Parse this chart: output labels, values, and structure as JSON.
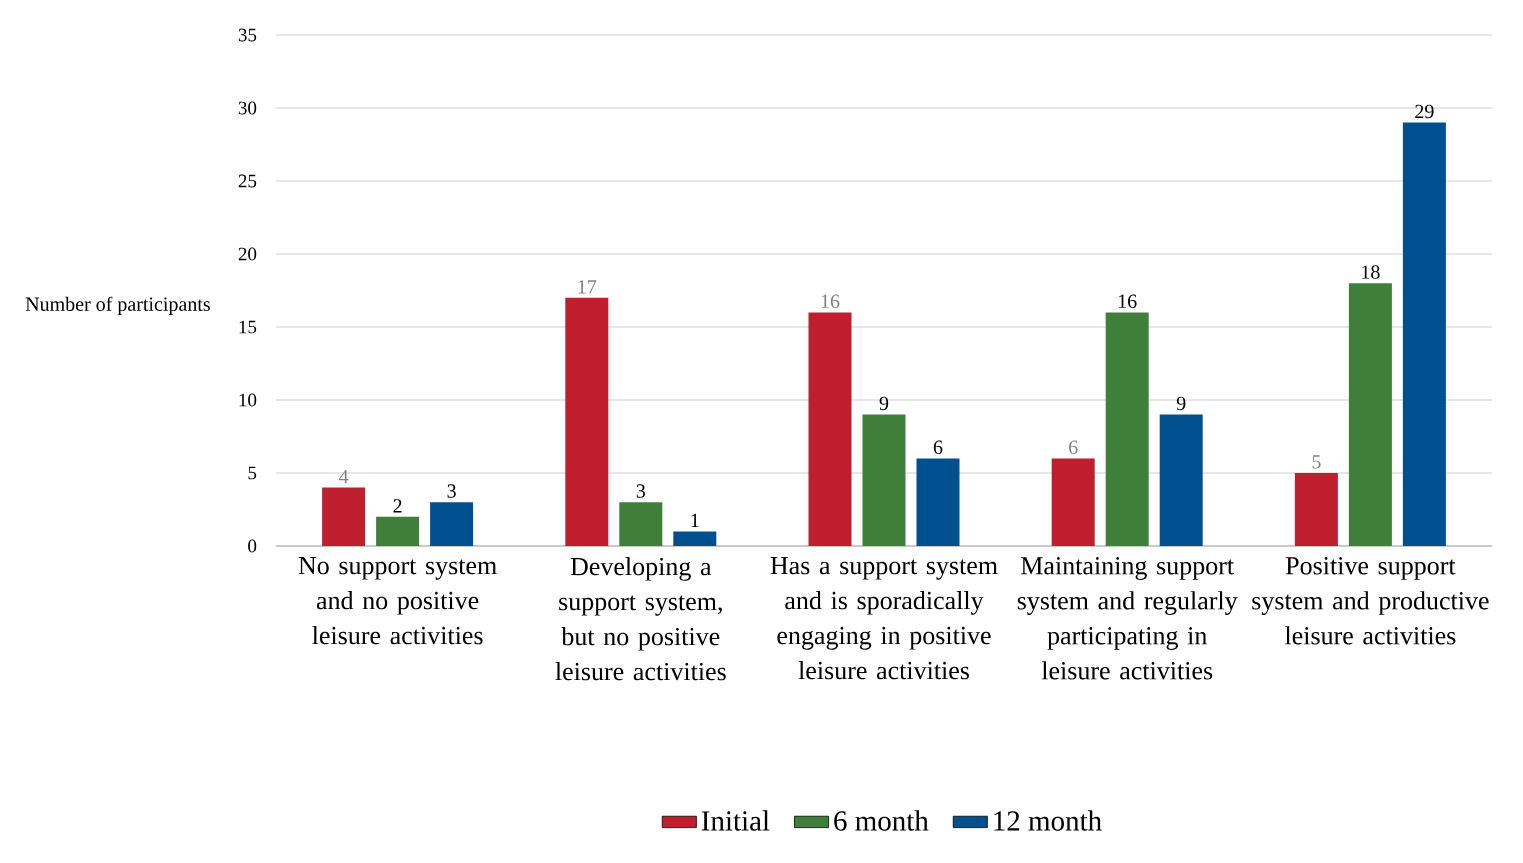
{
  "chart_data": {
    "type": "bar",
    "ylabel": "Number of participants",
    "categories": [
      "No support system and no positive leisure activities",
      "Developing a support system, but no positive leisure activities",
      "Has a support system and is sporadically engaging in positive leisure activities",
      "Maintaining support system and regularly participating in leisure activities",
      "Positive support system and productive leisure activities"
    ],
    "series": [
      {
        "name": "Initial",
        "color": "#be1e2d",
        "values": [
          4,
          17,
          16,
          6,
          5
        ]
      },
      {
        "name": "6 month",
        "color": "#3f7f3a",
        "values": [
          2,
          3,
          9,
          16,
          18
        ]
      },
      {
        "name": "12 month",
        "color": "#00508f",
        "values": [
          3,
          1,
          6,
          9,
          29
        ]
      }
    ],
    "ylim": [
      0,
      35
    ],
    "yticks": [
      0,
      5,
      10,
      15,
      20,
      25,
      30,
      35
    ],
    "grid": "y",
    "legend": "bottom",
    "data_labels": true
  }
}
